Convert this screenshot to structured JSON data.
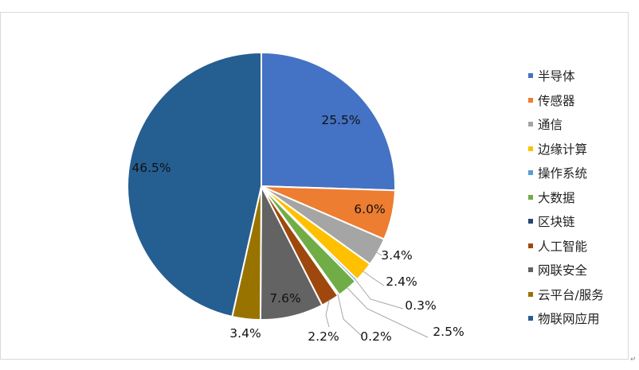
{
  "chart_data": {
    "type": "pie",
    "title": "",
    "slices": [
      {
        "name": "半导体",
        "value": 25.5,
        "label": "25.5%",
        "color": "#4472C4"
      },
      {
        "name": "传感器",
        "value": 6.0,
        "label": "6.0%",
        "color": "#ED7D31"
      },
      {
        "name": "通信",
        "value": 3.4,
        "label": "3.4%",
        "color": "#A5A5A5"
      },
      {
        "name": "边缘计算",
        "value": 2.4,
        "label": "2.4%",
        "color": "#FFC000"
      },
      {
        "name": "操作系统",
        "value": 0.3,
        "label": "0.3%",
        "color": "#5B9BD5"
      },
      {
        "name": "大数据",
        "value": 2.5,
        "label": "2.5%",
        "color": "#70AD47"
      },
      {
        "name": "区块链",
        "value": 0.2,
        "label": "0.2%",
        "color": "#264478"
      },
      {
        "name": "人工智能",
        "value": 2.2,
        "label": "2.2%",
        "color": "#9E480E"
      },
      {
        "name": "网联安全",
        "value": 7.6,
        "label": "7.6%",
        "color": "#636363"
      },
      {
        "name": "云平台/服务",
        "value": 3.4,
        "label": "3.4%",
        "color": "#997300"
      },
      {
        "name": "物联网应用",
        "value": 46.5,
        "label": "46.5%",
        "color": "#255E91"
      }
    ],
    "legend_position": "right"
  },
  "page": {
    "return_mark": "↵"
  }
}
